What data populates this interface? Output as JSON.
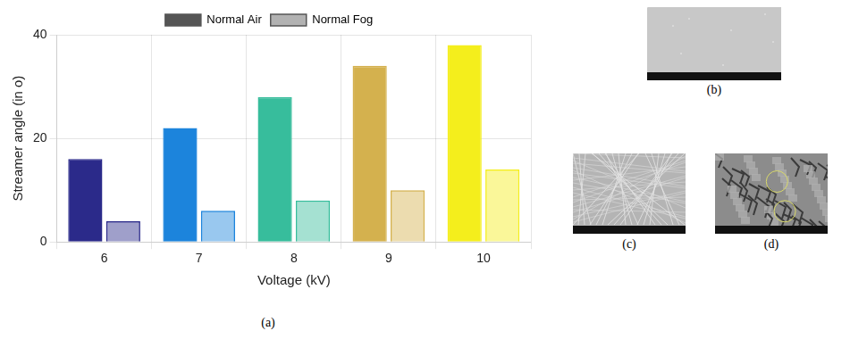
{
  "chart_data": {
    "type": "bar",
    "categories": [
      "6",
      "7",
      "8",
      "9",
      "10"
    ],
    "x_label": "Voltage (kV)",
    "y_label": "Streamer angle (in o)",
    "series": [
      {
        "name": "Normal Air",
        "values": [
          16,
          22,
          28,
          34,
          38
        ]
      },
      {
        "name": "Normal Fog",
        "values": [
          4,
          6,
          8,
          10,
          14
        ]
      }
    ],
    "colors": [
      "#2b2a8a",
      "#1c84dc",
      "#37bd9c",
      "#d4b14e",
      "#f4ee1c"
    ],
    "ylim": [
      0,
      40
    ],
    "yticks": [
      0,
      20,
      40
    ],
    "grid": true,
    "legend": "top"
  },
  "figure": {
    "panels": [
      {
        "caption": "(a)"
      },
      {
        "caption": "(b)"
      },
      {
        "caption": "(c)"
      },
      {
        "caption": "(d)"
      }
    ]
  }
}
